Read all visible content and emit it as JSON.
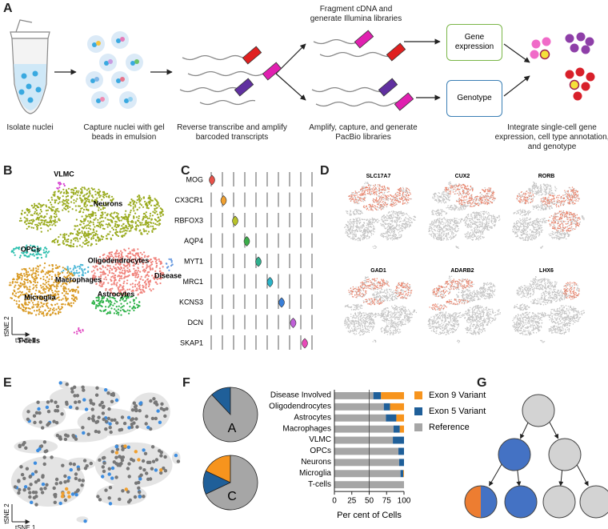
{
  "panel_labels": [
    "A",
    "B",
    "C",
    "D",
    "E",
    "F",
    "G"
  ],
  "workflow": {
    "steps": [
      "Isolate nuclei",
      "Capture nuclei with gel beads in emulsion",
      "Reverse transcribe and amplify barcoded transcripts",
      "Amplify, capture, and generate PacBio libraries",
      "Integrate single-cell gene expression, cell type annotation, and genotype"
    ],
    "illumina_step": "Fragment cDNA and generate Illumina libraries",
    "outputs": [
      "Gene expression",
      "Genotype"
    ]
  },
  "tsne_clusters": {
    "labels": [
      "VLMC",
      "Neurons",
      "OPCs",
      "Oligodendrocytes",
      "Macrophages",
      "Disease",
      "Microglia",
      "Astrocytes",
      "T-cells"
    ],
    "x_label": "tSNE 1",
    "y_label": "tSNE 2"
  },
  "violin_genes": [
    "MOG",
    "CX3CR1",
    "RBFOX3",
    "AQP4",
    "MYT1",
    "MRC1",
    "KCNS3",
    "DCN",
    "SKAP1"
  ],
  "marker_genes": [
    "SLC17A7",
    "CUX2",
    "RORB",
    "GAD1",
    "ADARB2",
    "LHX6"
  ],
  "genotype_tsne": {
    "x_label": "tSNE 1",
    "y_label": "tSNE 2"
  },
  "chart_data": [
    {
      "type": "pie",
      "title": "A",
      "values": [
        12,
        88
      ],
      "colors": [
        "#1f5f99",
        "#a6a6a6"
      ]
    },
    {
      "type": "pie",
      "title": "C",
      "values": [
        18,
        14,
        68
      ],
      "colors": [
        "#f7941d",
        "#1f5f99",
        "#a6a6a6"
      ]
    },
    {
      "type": "bar",
      "orientation": "horizontal",
      "stacked": true,
      "categories": [
        "Disease Involved",
        "Oligodendrocytes",
        "Astrocytes",
        "Macrophages",
        "VLMC",
        "OPCs",
        "Neurons",
        "Microglia",
        "T-cells"
      ],
      "series": [
        {
          "name": "Exon 9 Variant",
          "color": "#f7941d",
          "values": [
            33,
            20,
            11,
            6,
            0,
            0,
            0,
            1,
            0
          ]
        },
        {
          "name": "Exon 5 Variant",
          "color": "#1f5f99",
          "values": [
            11,
            9,
            15,
            9,
            16,
            8,
            7,
            4,
            0
          ]
        },
        {
          "name": "Reference",
          "color": "#a6a6a6",
          "values": [
            56,
            71,
            74,
            85,
            84,
            92,
            93,
            95,
            100
          ]
        }
      ],
      "xlim": [
        0,
        100
      ],
      "xticks": [
        0,
        25,
        50,
        75,
        100
      ],
      "reference_line": 50,
      "x_label": "Per cent of Cells"
    }
  ]
}
